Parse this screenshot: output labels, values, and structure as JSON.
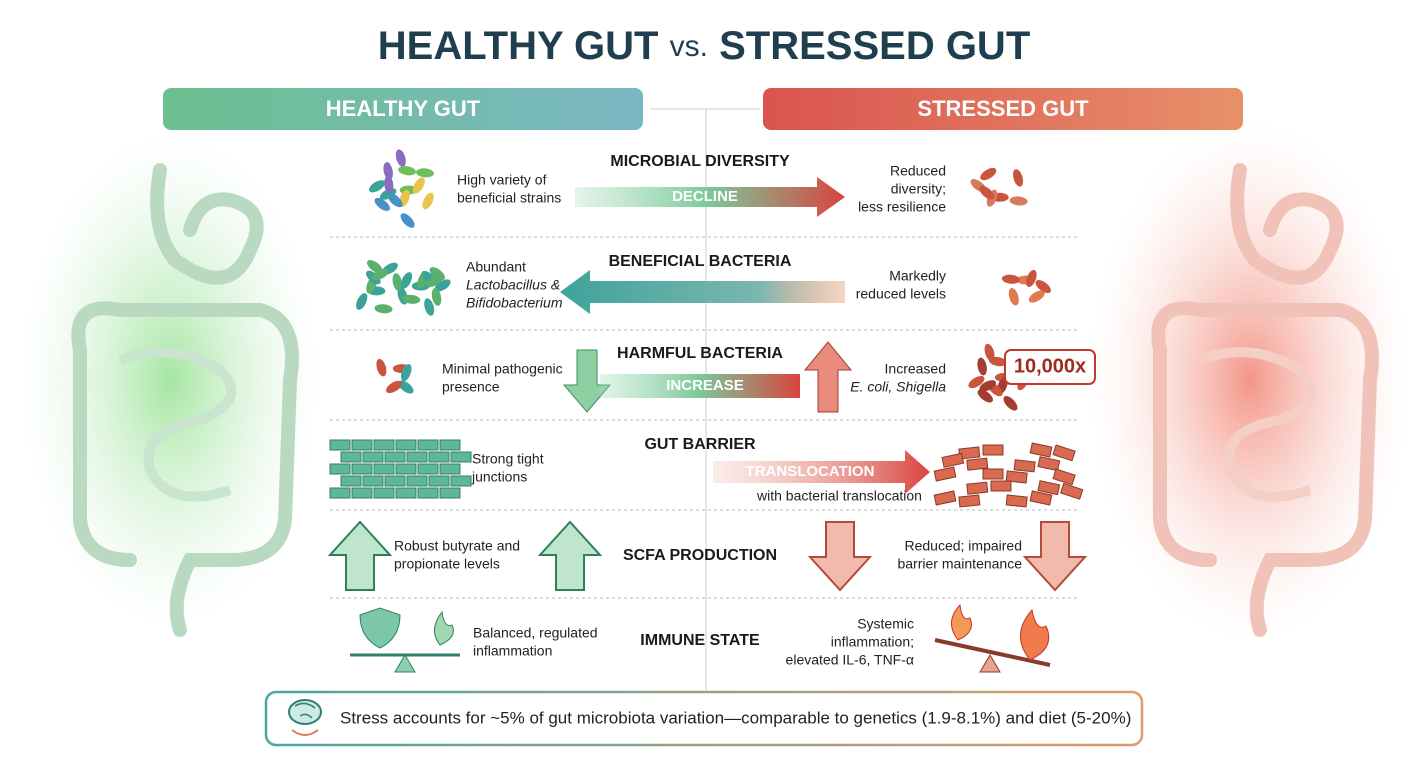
{
  "title": {
    "left": "HEALTHY GUT",
    "vs": "vs.",
    "right": "STRESSED GUT"
  },
  "columns": {
    "healthy": "HEALTHY GUT",
    "stressed": "STRESSED GUT"
  },
  "rows": [
    {
      "label": "MICROBIAL DIVERSITY",
      "healthy": [
        "High variety of",
        "beneficial strains"
      ],
      "stressed": [
        "Reduced",
        "diversity;",
        "less resilience"
      ],
      "arrow": "DECLINE"
    },
    {
      "label": "BENEFICIAL BACTERIA",
      "healthy": [
        "Abundant",
        "Lactobacillus &",
        "Bifidobacterium"
      ],
      "stressed": [
        "Markedly",
        "reduced levels"
      ]
    },
    {
      "label": "HARMFUL BACTERIA",
      "healthy": [
        "Minimal pathogenic",
        "presence"
      ],
      "stressed": [
        "Increased",
        "E. coli, Shigella"
      ],
      "arrow": "INCREASE",
      "badge": "10,000x"
    },
    {
      "label": "GUT BARRIER",
      "healthy": [
        "Strong tight",
        "junctions"
      ],
      "stressed": [
        "with bacterial translocation"
      ],
      "arrow": "TRANSLOCATION"
    },
    {
      "label": "SCFA PRODUCTION",
      "healthy": [
        "Robust butyrate and",
        "propionate levels"
      ],
      "stressed": [
        "Reduced; impaired",
        "barrier maintenance"
      ]
    },
    {
      "label": "IMMUNE STATE",
      "healthy": [
        "Balanced, regulated",
        "inflammation"
      ],
      "stressed": [
        "Systemic",
        "inflammation;",
        "elevated IL-6, TNF-α"
      ]
    }
  ],
  "footer": "Stress accounts for ~5% of gut microbiota variation—comparable to genetics (1.9-8.1%) and diet (5-20%)"
}
